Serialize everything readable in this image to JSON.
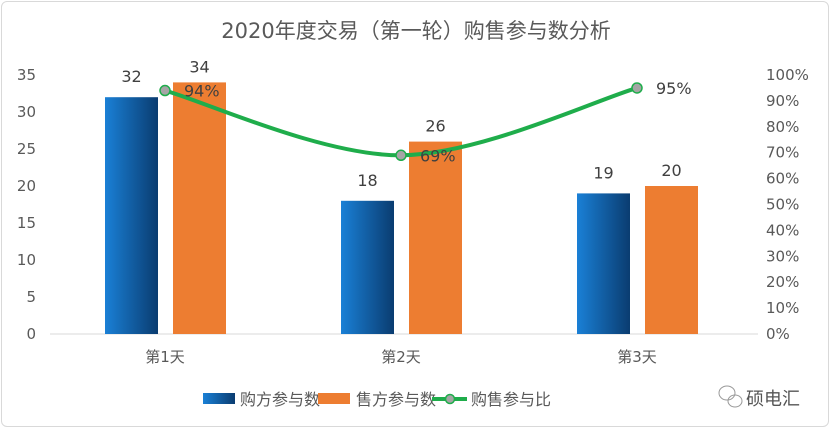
{
  "chart_data": {
    "type": "bar",
    "title": "2020年度交易（第一轮）购售参与数分析",
    "categories": [
      "第1天",
      "第2天",
      "第3天"
    ],
    "series": [
      {
        "name": "购方参与数",
        "type": "bar",
        "axis": "left",
        "values": [
          32,
          18,
          19
        ],
        "color": "#0b5fa8"
      },
      {
        "name": "售方参与数",
        "type": "bar",
        "axis": "left",
        "values": [
          34,
          26,
          20
        ],
        "color": "#ed7d31"
      },
      {
        "name": "购售参与比",
        "type": "line",
        "axis": "right",
        "values": [
          94,
          69,
          95
        ],
        "labels": [
          "94%",
          "69%",
          "95%"
        ],
        "color": "#1fad4b",
        "marker_color": "#a5a5a5"
      }
    ],
    "yleft": {
      "ylim": [
        0,
        35
      ],
      "ticks": [
        "0",
        "5",
        "10",
        "15",
        "20",
        "25",
        "30",
        "35"
      ]
    },
    "yright": {
      "ylim": [
        0,
        100
      ],
      "ticks": [
        "0%",
        "10%",
        "20%",
        "30%",
        "40%",
        "50%",
        "60%",
        "70%",
        "80%",
        "90%",
        "100%"
      ]
    },
    "grid": false,
    "legend": "bottom"
  },
  "watermark": {
    "text": "硕电汇",
    "icon": "wechat-icon"
  }
}
